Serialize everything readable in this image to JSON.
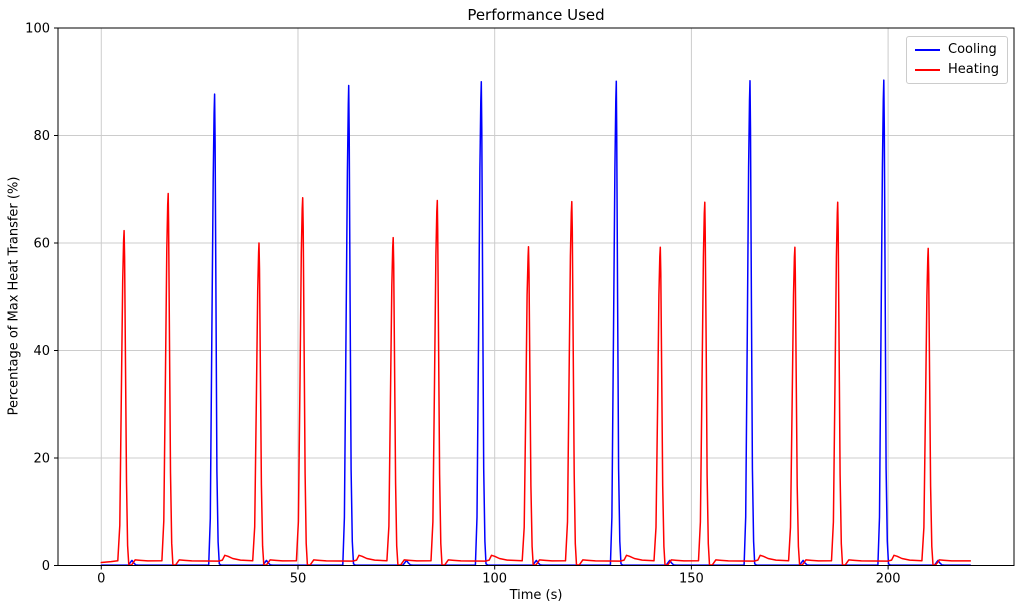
{
  "figure": {
    "title": "Performance Used",
    "xlabel": "Time (s)",
    "ylabel": "Percentage of Max Heat Transfer (%)"
  },
  "legend": {
    "items": [
      {
        "label": "Cooling",
        "color": "#0000ff"
      },
      {
        "label": "Heating",
        "color": "#ff0000"
      }
    ]
  },
  "chart_data": {
    "type": "line",
    "title": "Performance Used",
    "xlabel": "Time (s)",
    "ylabel": "Percentage of Max Heat Transfer (%)",
    "xlim": [
      -11,
      232
    ],
    "ylim": [
      0,
      100
    ],
    "xticks": [
      "0",
      "50",
      "100",
      "150",
      "200"
    ],
    "xtick_values": [
      0,
      50,
      100,
      150,
      200
    ],
    "yticks": [
      "0",
      "20",
      "40",
      "60",
      "80",
      "100"
    ],
    "ytick_values": [
      0,
      20,
      40,
      60,
      80,
      100
    ],
    "grid": true,
    "grid_color": "#cccccc",
    "legend_position": "upper right",
    "time_end": 220.9,
    "series": [
      {
        "name": "Cooling",
        "color": "#0000ff",
        "baseline": 0.07,
        "peaks": [
          [
            28.8,
            87.7
          ],
          [
            62.9,
            89.3
          ],
          [
            96.6,
            90.0
          ],
          [
            130.9,
            90.1
          ],
          [
            164.9,
            90.2
          ],
          [
            198.9,
            90.3
          ]
        ],
        "small_bumps": [
          7.8,
          42.0,
          77.6,
          110.6,
          144.5,
          178.4,
          212.7
        ],
        "small_bump_height": 0.95
      },
      {
        "name": "Heating",
        "color": "#ff0000",
        "baseline": 0.85,
        "peaks": [
          [
            5.8,
            62.3
          ],
          [
            17.0,
            69.2
          ],
          [
            40.1,
            60.0
          ],
          [
            51.2,
            68.4
          ],
          [
            74.2,
            61.0
          ],
          [
            85.4,
            67.9
          ],
          [
            108.6,
            59.3
          ],
          [
            119.6,
            67.7
          ],
          [
            142.1,
            59.2
          ],
          [
            153.4,
            67.6
          ],
          [
            176.3,
            59.2
          ],
          [
            187.2,
            67.6
          ],
          [
            210.2,
            59.0
          ]
        ],
        "tail_bumps": [
          31.4,
          65.5,
          99.2,
          133.5,
          167.5,
          201.5
        ],
        "tail_bump_height": 1.9
      }
    ]
  }
}
